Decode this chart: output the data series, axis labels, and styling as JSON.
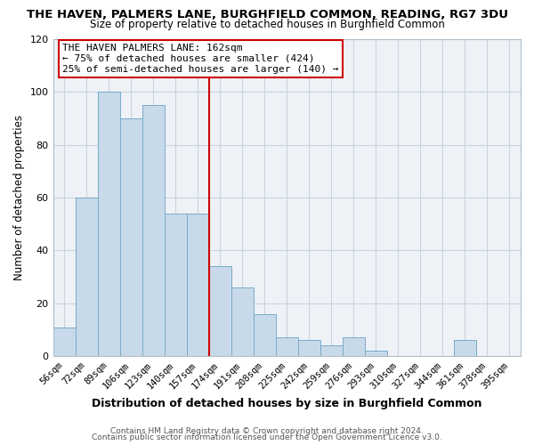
{
  "title": "THE HAVEN, PALMERS LANE, BURGHFIELD COMMON, READING, RG7 3DU",
  "subtitle": "Size of property relative to detached houses in Burghfield Common",
  "xlabel": "Distribution of detached houses by size in Burghfield Common",
  "ylabel": "Number of detached properties",
  "bar_labels": [
    "56sqm",
    "72sqm",
    "89sqm",
    "106sqm",
    "123sqm",
    "140sqm",
    "157sqm",
    "174sqm",
    "191sqm",
    "208sqm",
    "225sqm",
    "242sqm",
    "259sqm",
    "276sqm",
    "293sqm",
    "310sqm",
    "327sqm",
    "344sqm",
    "361sqm",
    "378sqm",
    "395sqm"
  ],
  "bar_heights": [
    11,
    60,
    100,
    90,
    95,
    54,
    54,
    34,
    26,
    16,
    7,
    6,
    4,
    7,
    2,
    0,
    0,
    0,
    6,
    0,
    0
  ],
  "bar_color": "#c8daea",
  "bar_edge_color": "#7aaac8",
  "ylim": [
    0,
    120
  ],
  "yticks": [
    0,
    20,
    40,
    60,
    80,
    100,
    120
  ],
  "vline_x_index": 6.5,
  "vline_color": "#cc0000",
  "annotation_line1": "THE HAVEN PALMERS LANE: 162sqm",
  "annotation_line2": "← 75% of detached houses are smaller (424)",
  "annotation_line3": "25% of semi-detached houses are larger (140) →",
  "footer_line1": "Contains HM Land Registry data © Crown copyright and database right 2024.",
  "footer_line2": "Contains public sector information licensed under the Open Government Licence v3.0.",
  "background_color": "#ffffff",
  "plot_background": "#eef2f7",
  "grid_color": "#c8d4e0",
  "title_fontsize": 9.5,
  "subtitle_fontsize": 8.5,
  "xlabel_fontsize": 9.0,
  "ylabel_fontsize": 8.5,
  "tick_fontsize": 7.5,
  "footer_fontsize": 6.5,
  "ann_fontsize": 8.0
}
